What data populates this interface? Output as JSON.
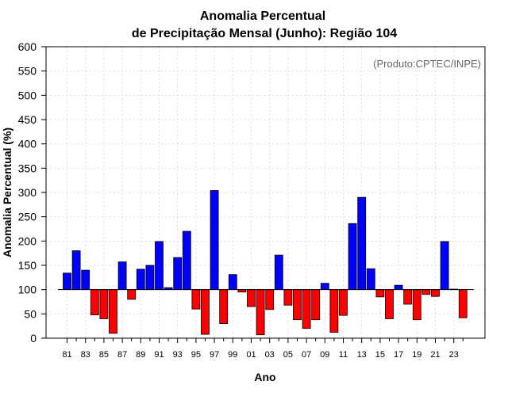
{
  "chart_data": {
    "type": "bar",
    "title": "Anomalia Percentual",
    "subtitle": "de Precipitação Mensal (Junho): Região 104",
    "xlabel": "Ano",
    "ylabel": "Anomalia Percentual (%)",
    "credit": "(Produto:CPTEC/INPE)",
    "ylim": [
      0,
      600
    ],
    "yticks": [
      0,
      50,
      100,
      150,
      200,
      250,
      300,
      350,
      400,
      450,
      500,
      550,
      600
    ],
    "baseline": 100,
    "grid": true,
    "categories": [
      "81",
      "82",
      "83",
      "84",
      "85",
      "86",
      "87",
      "88",
      "89",
      "90",
      "91",
      "92",
      "93",
      "94",
      "95",
      "96",
      "97",
      "98",
      "99",
      "00",
      "01",
      "02",
      "03",
      "04",
      "05",
      "06",
      "07",
      "08",
      "09",
      "10",
      "11",
      "12",
      "13",
      "14",
      "15",
      "16",
      "17",
      "18",
      "19",
      "20",
      "21",
      "22",
      "23",
      "24"
    ],
    "xtick_labels": [
      "81",
      "83",
      "85",
      "87",
      "89",
      "91",
      "93",
      "95",
      "97",
      "99",
      "01",
      "03",
      "05",
      "07",
      "09",
      "11",
      "13",
      "15",
      "17",
      "19",
      "21",
      "23"
    ],
    "values": [
      134,
      180,
      140,
      48,
      40,
      10,
      157,
      80,
      142,
      150,
      199,
      104,
      166,
      220,
      60,
      8,
      304,
      30,
      131,
      95,
      65,
      7,
      59,
      171,
      68,
      38,
      20,
      38,
      113,
      12,
      47,
      236,
      290,
      143,
      85,
      40,
      109,
      70,
      38,
      90,
      86,
      199,
      101,
      42
    ],
    "colors": {
      "positive": "#0000ff",
      "negative": "#ff0000",
      "grid": "#dddddd"
    }
  }
}
